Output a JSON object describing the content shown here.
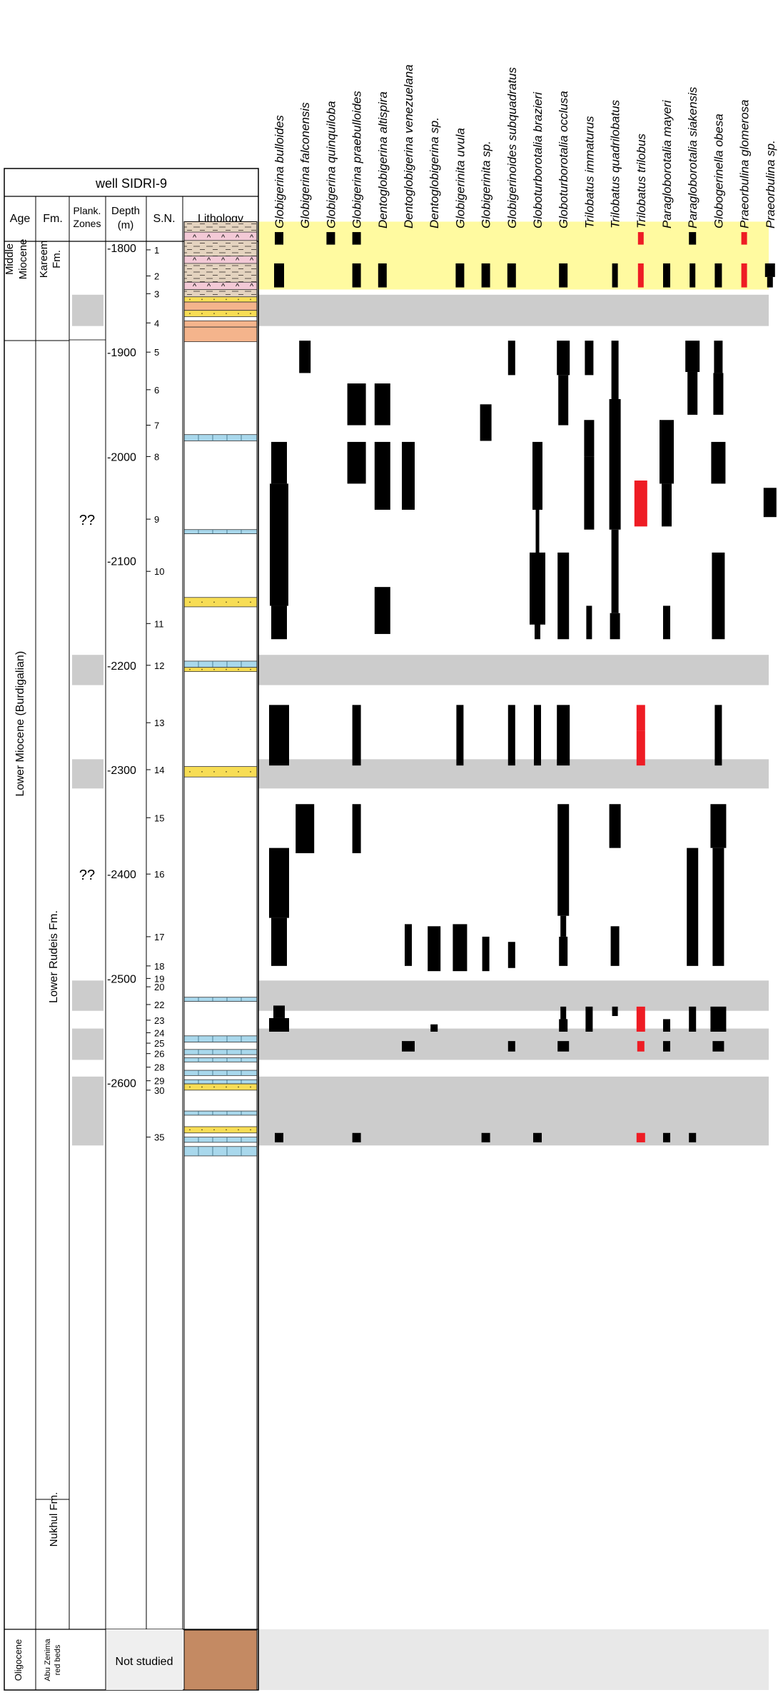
{
  "chart_data": {
    "type": "range",
    "title": "well SIDRI-9",
    "column_headers": {
      "age": "Age",
      "formation": "Fm.",
      "plank_zones": "Plank. Zones",
      "depth": "Depth (m)",
      "sample_number": "S.N.",
      "lithology": "Lithology"
    },
    "depth_axis": {
      "min": 1775,
      "max": 2672,
      "ticks": [
        1800,
        1900,
        2000,
        2100,
        2200,
        2300,
        2400,
        2500,
        2600
      ],
      "tick_labels": [
        "-1800",
        "-1900",
        "-2000",
        "-2100",
        "-2200",
        "-2300",
        "-2400",
        "-2500",
        "-2600"
      ]
    },
    "ages": [
      {
        "label": "Middle Miocene",
        "top": 1775,
        "bottom": 1840
      },
      {
        "label": "Lower Miocene (Burdigalian)",
        "top": 1840,
        "bottom": 2672
      },
      {
        "label": "Oligocene",
        "top": 2672,
        "bottom": 2725
      }
    ],
    "formations": [
      {
        "label": "Kareem Fm.",
        "top": 1775,
        "bottom": 1840
      },
      {
        "label": "Lower Rudeis Fm.",
        "top": 1840,
        "bottom": 2561
      },
      {
        "label": "Nukhul Fm.",
        "top": 2561,
        "bottom": 2672
      },
      {
        "label": "Abu Zenima red beds",
        "top": 2672,
        "bottom": 2725
      }
    ],
    "zone_labels": [
      {
        "label": "??",
        "depth": 2060
      },
      {
        "label": "??",
        "depth": 2400
      }
    ],
    "not_studied": "Not studied",
    "samples": [
      {
        "sn": "1",
        "depth": 1802
      },
      {
        "sn": "2",
        "depth": 1827
      },
      {
        "sn": "3",
        "depth": 1844
      },
      {
        "sn": "4",
        "depth": 1872
      },
      {
        "sn": "5",
        "depth": 1900
      },
      {
        "sn": "6",
        "depth": 1936
      },
      {
        "sn": "7",
        "depth": 1970
      },
      {
        "sn": "8",
        "depth": 2000
      },
      {
        "sn": "9",
        "depth": 2060
      },
      {
        "sn": "10",
        "depth": 2110
      },
      {
        "sn": "11",
        "depth": 2160
      },
      {
        "sn": "12",
        "depth": 2200
      },
      {
        "sn": "13",
        "depth": 2255
      },
      {
        "sn": "14",
        "depth": 2300
      },
      {
        "sn": "15",
        "depth": 2346
      },
      {
        "sn": "16",
        "depth": 2400
      },
      {
        "sn": "17",
        "depth": 2460
      },
      {
        "sn": "18",
        "depth": 2488
      },
      {
        "sn": "19",
        "depth": 2500
      },
      {
        "sn": "20",
        "depth": 2508
      },
      {
        "sn": "22",
        "depth": 2525
      },
      {
        "sn": "23",
        "depth": 2540
      },
      {
        "sn": "24",
        "depth": 2552
      },
      {
        "sn": "25",
        "depth": 2562
      },
      {
        "sn": "26",
        "depth": 2572
      },
      {
        "sn": "28",
        "depth": 2585
      },
      {
        "sn": "29",
        "depth": 2598
      },
      {
        "sn": "30",
        "depth": 2607
      },
      {
        "sn": "35",
        "depth": 2652
      }
    ],
    "bands": [
      {
        "top": 1775,
        "bottom": 1840,
        "color": "#fffaa0"
      },
      {
        "top": 1845,
        "bottom": 1875,
        "color": "#cccccc"
      },
      {
        "top": 2190,
        "bottom": 2219,
        "color": "#cccccc"
      },
      {
        "top": 2290,
        "bottom": 2318,
        "color": "#cccccc"
      },
      {
        "top": 2502,
        "bottom": 2531,
        "color": "#cccccc"
      },
      {
        "top": 2548,
        "bottom": 2578,
        "color": "#cccccc"
      },
      {
        "top": 2594,
        "bottom": 2660,
        "color": "#cccccc"
      }
    ],
    "lithology": [
      {
        "top": 1775,
        "bottom": 1850,
        "kind": "shale"
      },
      {
        "top": 1785,
        "bottom": 1793,
        "kind": "anhydrite"
      },
      {
        "top": 1808,
        "bottom": 1815,
        "kind": "anhydrite"
      },
      {
        "top": 1833,
        "bottom": 1840,
        "kind": "anhydrite"
      },
      {
        "top": 1847,
        "bottom": 1852,
        "kind": "sand"
      },
      {
        "top": 1852,
        "bottom": 1860,
        "kind": "red"
      },
      {
        "top": 1860,
        "bottom": 1866,
        "kind": "sand"
      },
      {
        "top": 1870,
        "bottom": 1876,
        "kind": "red"
      },
      {
        "top": 1876,
        "bottom": 1890,
        "kind": "red"
      },
      {
        "top": 1979,
        "bottom": 1985,
        "kind": "lime"
      },
      {
        "top": 2070,
        "bottom": 2074,
        "kind": "lime"
      },
      {
        "top": 2135,
        "bottom": 2144,
        "kind": "sand"
      },
      {
        "top": 2196,
        "bottom": 2202,
        "kind": "lime"
      },
      {
        "top": 2202,
        "bottom": 2206,
        "kind": "sand"
      },
      {
        "top": 2297,
        "bottom": 2307,
        "kind": "sand"
      },
      {
        "top": 2518,
        "bottom": 2522,
        "kind": "lime"
      },
      {
        "top": 2555,
        "bottom": 2561,
        "kind": "lime"
      },
      {
        "top": 2568,
        "bottom": 2573,
        "kind": "lime"
      },
      {
        "top": 2576,
        "bottom": 2580,
        "kind": "lime"
      },
      {
        "top": 2588,
        "bottom": 2593,
        "kind": "lime"
      },
      {
        "top": 2597,
        "bottom": 2601,
        "kind": "lime"
      },
      {
        "top": 2601,
        "bottom": 2607,
        "kind": "sand"
      },
      {
        "top": 2627,
        "bottom": 2631,
        "kind": "lime"
      },
      {
        "top": 2642,
        "bottom": 2648,
        "kind": "sand"
      },
      {
        "top": 2652,
        "bottom": 2657,
        "kind": "lime"
      },
      {
        "top": 2661,
        "bottom": 2670,
        "kind": "lime"
      },
      {
        "top": 2672,
        "bottom": 2725,
        "kind": "redbeds"
      }
    ],
    "series": [
      {
        "name": "Globigerina bulloides",
        "highlight": false,
        "ranges": [
          {
            "top": 1785,
            "bottom": 1797,
            "w": 12
          },
          {
            "top": 1815,
            "bottom": 1838,
            "w": 14
          },
          {
            "top": 1986,
            "bottom": 2026,
            "w": 22
          },
          {
            "top": 2026,
            "bottom": 2143,
            "w": 26
          },
          {
            "top": 2143,
            "bottom": 2175,
            "w": 22
          },
          {
            "top": 2238,
            "bottom": 2296,
            "w": 28
          },
          {
            "top": 2375,
            "bottom": 2442,
            "w": 28
          },
          {
            "top": 2442,
            "bottom": 2488,
            "w": 22
          },
          {
            "top": 2526,
            "bottom": 2538,
            "w": 16
          },
          {
            "top": 2538,
            "bottom": 2551,
            "w": 28
          },
          {
            "top": 2648,
            "bottom": 2657,
            "w": 12
          }
        ]
      },
      {
        "name": "Globigerina falconensis",
        "highlight": false,
        "ranges": [
          {
            "top": 1889,
            "bottom": 1920,
            "w": 16
          },
          {
            "top": 2333,
            "bottom": 2380,
            "w": 26
          }
        ]
      },
      {
        "name": "Globigerina quinquiloba",
        "highlight": false,
        "ranges": [
          {
            "top": 1785,
            "bottom": 1797,
            "w": 12
          }
        ]
      },
      {
        "name": "Globigerina praebulloides",
        "highlight": false,
        "ranges": [
          {
            "top": 1785,
            "bottom": 1797,
            "w": 12
          },
          {
            "top": 1815,
            "bottom": 1838,
            "w": 12
          },
          {
            "top": 1930,
            "bottom": 1970,
            "w": 26
          },
          {
            "top": 1986,
            "bottom": 2026,
            "w": 26
          },
          {
            "top": 2238,
            "bottom": 2296,
            "w": 12
          },
          {
            "top": 2333,
            "bottom": 2380,
            "w": 12
          },
          {
            "top": 2648,
            "bottom": 2657,
            "w": 12
          }
        ]
      },
      {
        "name": "Dentoglobigerina altispira",
        "highlight": false,
        "ranges": [
          {
            "top": 1815,
            "bottom": 1838,
            "w": 12
          },
          {
            "top": 1930,
            "bottom": 1970,
            "w": 22
          },
          {
            "top": 1986,
            "bottom": 2051,
            "w": 22
          },
          {
            "top": 2125,
            "bottom": 2170,
            "w": 22
          }
        ]
      },
      {
        "name": "Dentoglobigerina venezuelana",
        "highlight": false,
        "ranges": [
          {
            "top": 1986,
            "bottom": 2051,
            "w": 18
          },
          {
            "top": 2448,
            "bottom": 2488,
            "w": 10
          },
          {
            "top": 2560,
            "bottom": 2570,
            "w": 18
          }
        ]
      },
      {
        "name": "Dentoglobigerina sp.",
        "highlight": false,
        "ranges": [
          {
            "top": 2450,
            "bottom": 2493,
            "w": 18
          },
          {
            "top": 2544,
            "bottom": 2551,
            "w": 10
          }
        ]
      },
      {
        "name": "Globigerinita uvula",
        "highlight": false,
        "ranges": [
          {
            "top": 1815,
            "bottom": 1838,
            "w": 12
          },
          {
            "top": 2238,
            "bottom": 2296,
            "w": 10
          },
          {
            "top": 2448,
            "bottom": 2493,
            "w": 20
          }
        ]
      },
      {
        "name": "Globigerinita sp.",
        "highlight": false,
        "ranges": [
          {
            "top": 1815,
            "bottom": 1838,
            "w": 12
          },
          {
            "top": 1950,
            "bottom": 1985,
            "w": 16
          },
          {
            "top": 2460,
            "bottom": 2493,
            "w": 10
          },
          {
            "top": 2648,
            "bottom": 2657,
            "w": 12
          }
        ]
      },
      {
        "name": "Globigerinoides subquadratus",
        "highlight": false,
        "ranges": [
          {
            "top": 1815,
            "bottom": 1838,
            "w": 12
          },
          {
            "top": 1889,
            "bottom": 1922,
            "w": 10
          },
          {
            "top": 2238,
            "bottom": 2296,
            "w": 10
          },
          {
            "top": 2465,
            "bottom": 2490,
            "w": 10
          },
          {
            "top": 2560,
            "bottom": 2570,
            "w": 10
          }
        ]
      },
      {
        "name": "Globoturborotalia brazieri",
        "highlight": false,
        "ranges": [
          {
            "top": 2092,
            "bottom": 2161,
            "w": 22
          },
          {
            "top": 1986,
            "bottom": 2051,
            "w": 14
          },
          {
            "top": 2238,
            "bottom": 2296,
            "w": 10
          },
          {
            "top": 2648,
            "bottom": 2657,
            "w": 12
          },
          {
            "top": 2048,
            "bottom": 2140,
            "w": 5
          },
          {
            "top": 2140,
            "bottom": 2175,
            "w": 8
          }
        ]
      },
      {
        "name": "Globoturborotalia occlusa",
        "highlight": false,
        "ranges": [
          {
            "top": 1815,
            "bottom": 1838,
            "w": 12
          },
          {
            "top": 1889,
            "bottom": 1922,
            "w": 18
          },
          {
            "top": 1922,
            "bottom": 1970,
            "w": 14
          },
          {
            "top": 2092,
            "bottom": 2175,
            "w": 16
          },
          {
            "top": 2238,
            "bottom": 2296,
            "w": 18
          },
          {
            "top": 2333,
            "bottom": 2440,
            "w": 16
          },
          {
            "top": 2440,
            "bottom": 2460,
            "w": 8
          },
          {
            "top": 2460,
            "bottom": 2488,
            "w": 12
          },
          {
            "top": 2527,
            "bottom": 2539,
            "w": 8
          },
          {
            "top": 2539,
            "bottom": 2551,
            "w": 12
          },
          {
            "top": 2560,
            "bottom": 2570,
            "w": 16
          }
        ]
      },
      {
        "name": "Trilobatus immaturus",
        "highlight": false,
        "ranges": [
          {
            "top": 1889,
            "bottom": 1922,
            "w": 12
          },
          {
            "top": 1965,
            "bottom": 2000,
            "w": 14
          },
          {
            "top": 2000,
            "bottom": 2070,
            "w": 14
          },
          {
            "top": 2143,
            "bottom": 2175,
            "w": 8
          },
          {
            "top": 2527,
            "bottom": 2551,
            "w": 10
          }
        ]
      },
      {
        "name": "Trilobatus quadrilobatus",
        "highlight": false,
        "ranges": [
          {
            "top": 1815,
            "bottom": 1838,
            "w": 8
          },
          {
            "top": 1889,
            "bottom": 1945,
            "w": 10
          },
          {
            "top": 1945,
            "bottom": 2070,
            "w": 16
          },
          {
            "top": 2070,
            "bottom": 2150,
            "w": 10
          },
          {
            "top": 2150,
            "bottom": 2175,
            "w": 14
          },
          {
            "top": 2333,
            "bottom": 2375,
            "w": 16
          },
          {
            "top": 2450,
            "bottom": 2488,
            "w": 12
          },
          {
            "top": 2527,
            "bottom": 2536,
            "w": 8
          }
        ]
      },
      {
        "name": "Trilobatus trilobus",
        "highlight": true,
        "ranges": [
          {
            "top": 1785,
            "bottom": 1797,
            "w": 8
          },
          {
            "top": 1815,
            "bottom": 1838,
            "w": 8
          },
          {
            "top": 2023,
            "bottom": 2067,
            "w": 18
          },
          {
            "top": 2238,
            "bottom": 2263,
            "w": 12
          },
          {
            "top": 2263,
            "bottom": 2296,
            "w": 12
          },
          {
            "top": 2527,
            "bottom": 2551,
            "w": 12
          },
          {
            "top": 2560,
            "bottom": 2570,
            "w": 10
          },
          {
            "top": 2648,
            "bottom": 2657,
            "w": 12
          }
        ]
      },
      {
        "name": "Paragloborotalia mayeri",
        "highlight": false,
        "ranges": [
          {
            "top": 1815,
            "bottom": 1838,
            "w": 10
          },
          {
            "top": 1965,
            "bottom": 2026,
            "w": 20
          },
          {
            "top": 2026,
            "bottom": 2067,
            "w": 14
          },
          {
            "top": 2143,
            "bottom": 2175,
            "w": 10
          },
          {
            "top": 2539,
            "bottom": 2551,
            "w": 10
          },
          {
            "top": 2560,
            "bottom": 2570,
            "w": 10
          },
          {
            "top": 2648,
            "bottom": 2657,
            "w": 10
          }
        ]
      },
      {
        "name": "Paragloborotalia siakensis",
        "highlight": false,
        "ranges": [
          {
            "top": 1785,
            "bottom": 1797,
            "w": 10
          },
          {
            "top": 1815,
            "bottom": 1838,
            "w": 8
          },
          {
            "top": 1889,
            "bottom": 1919,
            "w": 20
          },
          {
            "top": 1919,
            "bottom": 1960,
            "w": 14
          },
          {
            "top": 2375,
            "bottom": 2488,
            "w": 16
          },
          {
            "top": 2527,
            "bottom": 2551,
            "w": 10
          },
          {
            "top": 2648,
            "bottom": 2657,
            "w": 10
          }
        ]
      },
      {
        "name": "Globogerinella obesa",
        "highlight": false,
        "ranges": [
          {
            "top": 1815,
            "bottom": 1838,
            "w": 10
          },
          {
            "top": 1889,
            "bottom": 1920,
            "w": 12
          },
          {
            "top": 1920,
            "bottom": 1960,
            "w": 14
          },
          {
            "top": 1986,
            "bottom": 2026,
            "w": 20
          },
          {
            "top": 2092,
            "bottom": 2175,
            "w": 18
          },
          {
            "top": 2238,
            "bottom": 2296,
            "w": 10
          },
          {
            "top": 2333,
            "bottom": 2375,
            "w": 22
          },
          {
            "top": 2375,
            "bottom": 2488,
            "w": 16
          },
          {
            "top": 2527,
            "bottom": 2551,
            "w": 22
          },
          {
            "top": 2560,
            "bottom": 2570,
            "w": 16
          }
        ]
      },
      {
        "name": "Praeorbulina glomerosa",
        "highlight": true,
        "ranges": [
          {
            "top": 1785,
            "bottom": 1797,
            "w": 8
          },
          {
            "top": 1815,
            "bottom": 1838,
            "w": 8
          }
        ]
      },
      {
        "name": "Praeorbulina sp.",
        "highlight": false,
        "ranges": [
          {
            "top": 1815,
            "bottom": 1828,
            "w": 14
          },
          {
            "top": 1828,
            "bottom": 1838,
            "w": 8
          },
          {
            "top": 2030,
            "bottom": 2058,
            "w": 18
          }
        ]
      }
    ]
  }
}
